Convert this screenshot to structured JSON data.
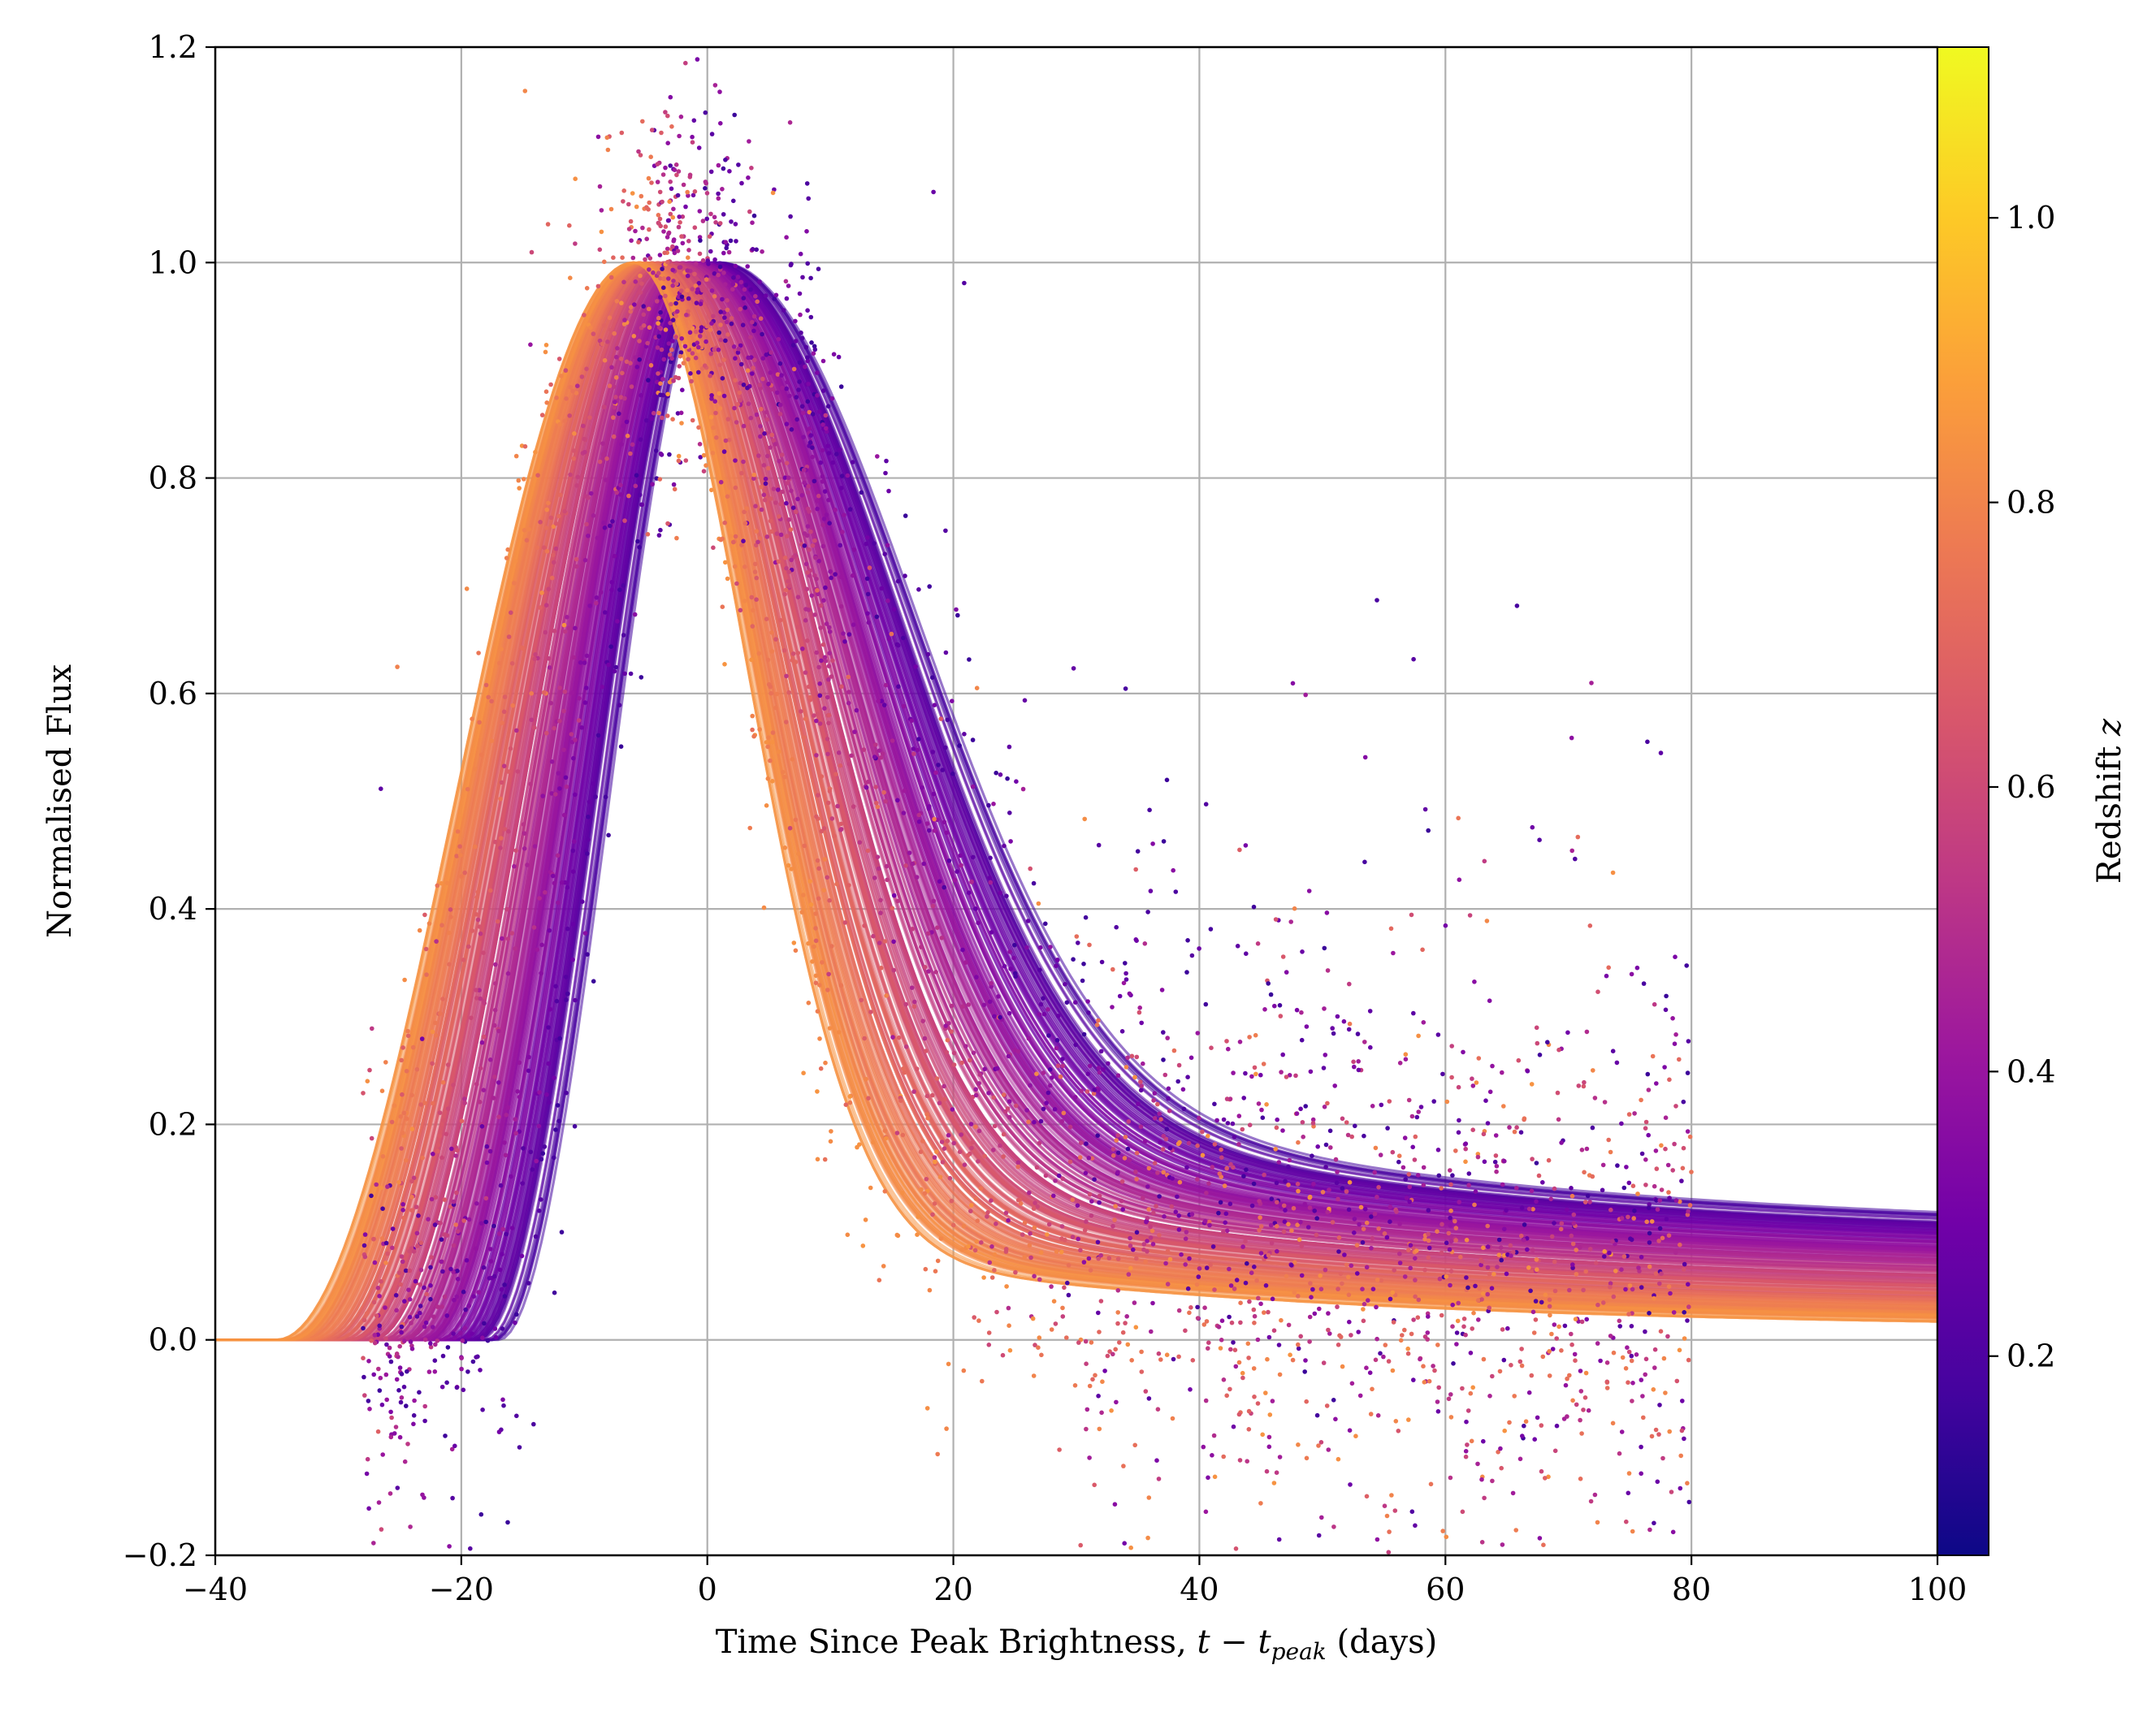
{
  "chart_data": {
    "type": "line+scatter",
    "xlabel": "Time Since Peak Brightness, t − t_peak (days)",
    "xlabel_parts": {
      "prefix": "Time Since Peak Brightness, ",
      "t": "t",
      "minus": " − ",
      "tpeak_base": "t",
      "tpeak_sub": "peak",
      "suffix": " (days)"
    },
    "ylabel": "Normalised Flux",
    "xlim": [
      -40,
      100
    ],
    "ylim": [
      -0.2,
      1.2
    ],
    "x_ticks": [
      -40,
      -20,
      0,
      20,
      40,
      60,
      80,
      100
    ],
    "x_tick_labels": [
      "−40",
      "−20",
      "0",
      "20",
      "40",
      "60",
      "80",
      "100"
    ],
    "y_ticks": [
      -0.2,
      0.0,
      0.2,
      0.4,
      0.6,
      0.8,
      1.0,
      1.2
    ],
    "y_tick_labels": [
      "−0.2",
      "0.0",
      "0.2",
      "0.4",
      "0.6",
      "0.8",
      "1.0",
      "1.2"
    ],
    "grid": true,
    "colormap": "plasma",
    "colormap_stops": [
      "#0d0887",
      "#46039f",
      "#7201a8",
      "#9c179e",
      "#bd3786",
      "#d8576b",
      "#ed7953",
      "#fb9f3a",
      "#fdca26",
      "#f0f921"
    ],
    "colorbar": {
      "label": "Redshift z",
      "label_prefix": "Redshift ",
      "label_symbol": "z",
      "range": [
        0.06,
        1.12
      ],
      "ticks": [
        0.2,
        0.4,
        0.6,
        0.8,
        1.0
      ],
      "tick_labels": [
        "0.2",
        "0.4",
        "0.6",
        "0.8",
        "1.0"
      ]
    },
    "model_curves": {
      "description_of_encoding": "each light-curve model rises from 0 to peak flux 1.0 and declines to a late-time plateau; color encodes redshift",
      "redshift_range": [
        0.15,
        0.85
      ],
      "rise_start_x_range": [
        -35,
        -17
      ],
      "peak_x_range": [
        -6,
        1
      ],
      "late_plateau_at_x100_range": [
        0.01,
        0.1
      ]
    },
    "observations": {
      "marker": "dot",
      "x_range": [
        -28,
        80
      ],
      "y_range": [
        -0.2,
        1.2
      ],
      "color_by": "redshift"
    }
  }
}
